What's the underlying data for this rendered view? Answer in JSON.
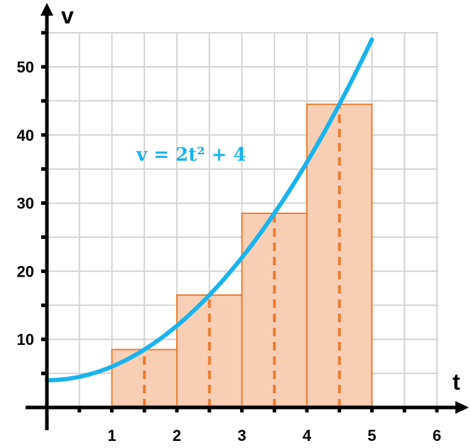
{
  "chart_data": {
    "type": "bar",
    "xlabel": "t",
    "ylabel": "v",
    "xlim": [
      0,
      6
    ],
    "ylim": [
      0,
      55
    ],
    "x_ticks": [
      1,
      2,
      3,
      4,
      5,
      6
    ],
    "y_ticks": [
      10,
      20,
      30,
      40,
      50
    ],
    "grid": true,
    "bars": [
      {
        "x_start": 1,
        "x_end": 2,
        "height": 8.5
      },
      {
        "x_start": 2,
        "x_end": 3,
        "height": 16.5
      },
      {
        "x_start": 3,
        "x_end": 4,
        "height": 28.5
      },
      {
        "x_start": 4,
        "x_end": 5,
        "height": 44.5
      }
    ],
    "midpoints": [
      1.5,
      2.5,
      3.5,
      4.5
    ],
    "curve": {
      "label": "v = 2t² + 4",
      "x_range": [
        0,
        5
      ]
    },
    "colors": {
      "bar_fill": "#f8cfb5",
      "bar_stroke": "#ed7d31",
      "midline": "#ed7d31",
      "curve": "#19b3ec"
    }
  }
}
